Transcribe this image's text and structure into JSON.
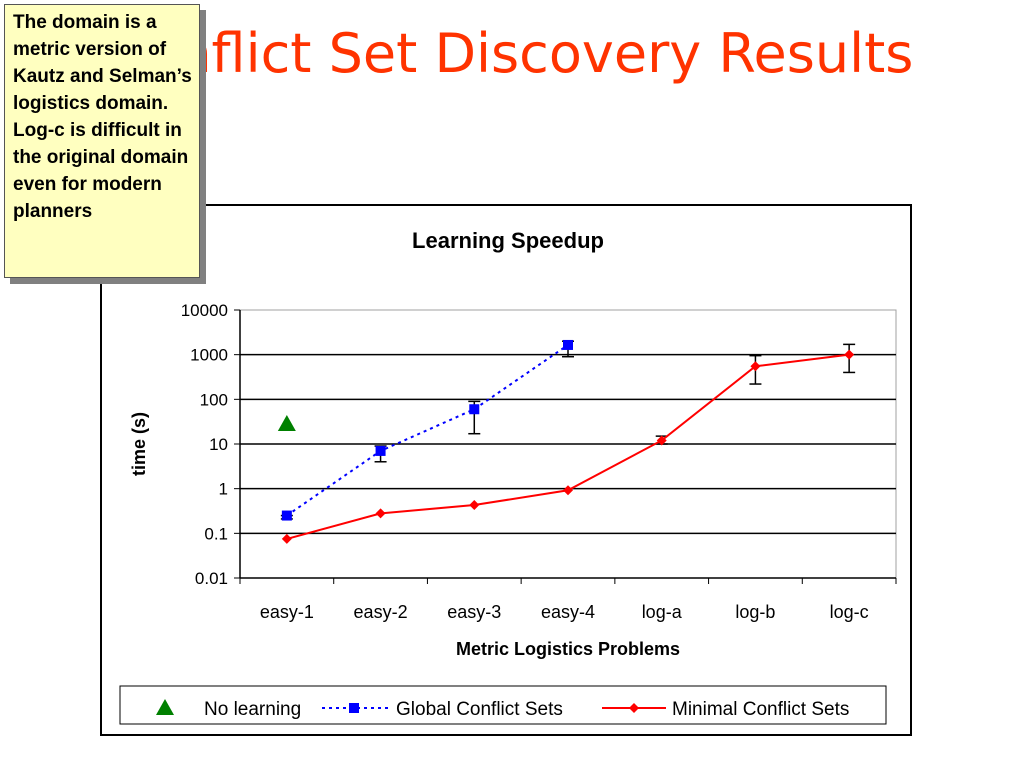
{
  "slide": {
    "title": "Conflict Set Discovery Results",
    "title_color": "#ff3300"
  },
  "callout": {
    "text": "The domain is a metric version of Kautz and Selman’s logistics domain. Log-c is difficult in the original domain even for modern planners",
    "background": "#ffffc0"
  },
  "chart_data": {
    "type": "line",
    "title": "Learning Speedup",
    "xlabel": "Metric Logistics Problems",
    "ylabel": "time (s)",
    "yscale": "log",
    "ylim": [
      0.01,
      10000
    ],
    "yticks": [
      "10000",
      "1000",
      "100",
      "10",
      "1",
      "0.1",
      "0.01"
    ],
    "categories": [
      "easy-1",
      "easy-2",
      "easy-3",
      "easy-4",
      "log-a",
      "log-b",
      "log-c"
    ],
    "grid": true,
    "legend_position": "bottom",
    "series": [
      {
        "name": "No learning",
        "color": "#008000",
        "marker": "triangle",
        "line": "none",
        "values": [
          28,
          null,
          null,
          null,
          null,
          null,
          null
        ]
      },
      {
        "name": "Global Conflict Sets",
        "color": "#0000ff",
        "marker": "square",
        "line": "dotted",
        "values": [
          0.25,
          7,
          60,
          1650,
          null,
          null,
          null
        ],
        "err_low": [
          0.21,
          4,
          17,
          900,
          null,
          null,
          null
        ],
        "err_high": [
          0.25,
          9,
          90,
          2000,
          null,
          null,
          null
        ]
      },
      {
        "name": "Minimal Conflict Sets",
        "color": "#ff0000",
        "marker": "diamond",
        "line": "solid",
        "values": [
          0.075,
          0.28,
          0.43,
          0.92,
          12,
          550,
          1000
        ],
        "err_low": [
          null,
          null,
          null,
          null,
          10,
          220,
          400
        ],
        "err_high": [
          null,
          null,
          null,
          null,
          15,
          950,
          1700
        ]
      }
    ]
  }
}
